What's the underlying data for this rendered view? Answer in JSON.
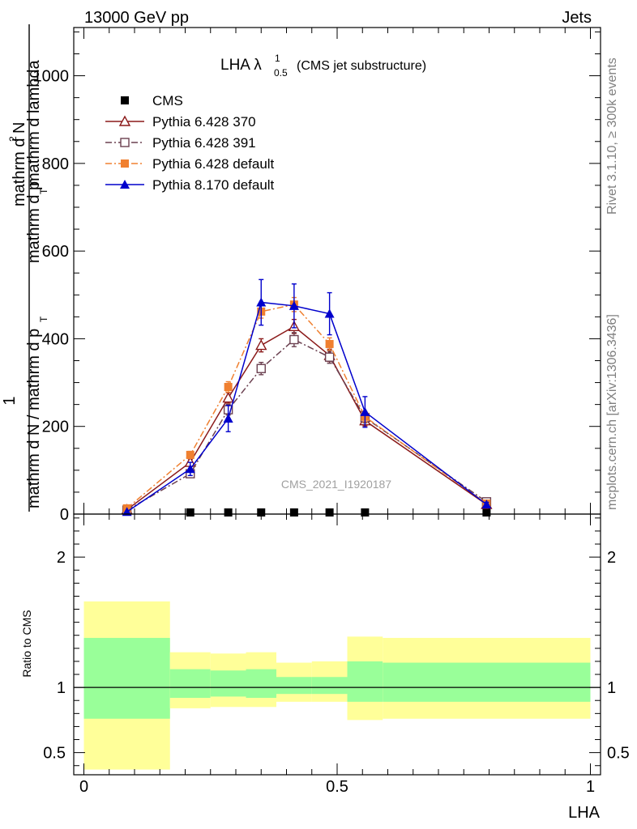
{
  "header": {
    "left": "13000 GeV pp",
    "right": "Jets"
  },
  "watermarks": {
    "rivet": "Rivet 3.1.10, ≥ 300k events",
    "mcplots": "mcplots.cern.ch [arXiv:1306.3436]",
    "analysis": "CMS_2021_I1920187"
  },
  "chart_data": [
    {
      "type": "line",
      "title_main": "LHA λ",
      "title_sup": "1",
      "title_sub": "0.5",
      "title_note": "(CMS jet substructure)",
      "ylabel_num": "1",
      "ylabel_num2": "mathrm d",
      "ylabel_num3": "2",
      "ylabel_num4": "N",
      "ylabel_num5": "mathrm d p",
      "ylabel_num6": "T",
      "ylabel_num7": "mathrm d lambda",
      "ylabel_den": "mathrm d N / mathrm d p",
      "ylabel_den_sub": "T",
      "xlim": [
        -0.02,
        1.02
      ],
      "ylim": [
        0,
        1110
      ],
      "yticks": [
        0,
        200,
        400,
        600,
        800,
        1000
      ],
      "yticklabels": [
        "0",
        "200",
        "400",
        "600",
        "800",
        "1000"
      ],
      "series": [
        {
          "name": "CMS",
          "color": "#000000",
          "marker": "square-filled",
          "x": [
            0.21,
            0.285,
            0.35,
            0.415,
            0.485,
            0.555,
            0.795
          ],
          "y": [
            0,
            0,
            0,
            0,
            0,
            0,
            0
          ]
        },
        {
          "name": "Pythia 6.428 370",
          "color": "#8b1a1a",
          "marker": "triangle-open",
          "dash": "",
          "x": [
            0.085,
            0.21,
            0.285,
            0.35,
            0.415,
            0.485,
            0.555,
            0.795
          ],
          "y": [
            10,
            118,
            265,
            385,
            428,
            362,
            213,
            22
          ],
          "err": [
            3,
            8,
            12,
            15,
            16,
            14,
            12,
            4
          ]
        },
        {
          "name": "Pythia 6.428 391",
          "color": "#6b4050",
          "marker": "square-open",
          "dash": "8,3,2,3",
          "x": [
            0.085,
            0.21,
            0.285,
            0.35,
            0.415,
            0.485,
            0.555,
            0.795
          ],
          "y": [
            9,
            92,
            238,
            332,
            398,
            358,
            220,
            28
          ],
          "err": [
            3,
            8,
            12,
            14,
            16,
            14,
            12,
            4
          ]
        },
        {
          "name": "Pythia 6.428 default",
          "color": "#f08030",
          "marker": "square-filled",
          "dash": "8,3,2,3",
          "x": [
            0.085,
            0.21,
            0.285,
            0.35,
            0.415,
            0.485,
            0.555,
            0.795
          ],
          "y": [
            13,
            135,
            290,
            462,
            478,
            388,
            222,
            24
          ],
          "err": [
            3,
            8,
            12,
            15,
            16,
            14,
            12,
            4
          ]
        },
        {
          "name": "Pythia 8.170 default",
          "color": "#0000cc",
          "marker": "triangle-filled",
          "dash": "",
          "x": [
            0.085,
            0.21,
            0.285,
            0.35,
            0.415,
            0.485,
            0.555,
            0.795
          ],
          "y": [
            5,
            103,
            218,
            483,
            475,
            457,
            233,
            22
          ],
          "err": [
            3,
            15,
            30,
            52,
            50,
            48,
            35,
            5
          ]
        }
      ]
    },
    {
      "type": "area",
      "ylabel": "Ratio to CMS",
      "xlabel": "LHA",
      "xlim": [
        -0.02,
        1.02
      ],
      "ylim": [
        0.33,
        2.33
      ],
      "yticks": [
        0.5,
        1,
        2
      ],
      "yticklabels": [
        "0.5",
        "1",
        "2"
      ],
      "xticks": [
        0,
        0.5,
        1
      ],
      "xticklabels": [
        "0",
        "0.5",
        "1"
      ],
      "bins": [
        {
          "x0": 0.0,
          "x1": 0.17,
          "yel_lo": 0.37,
          "yel_hi": 1.66,
          "grn_lo": 0.76,
          "grn_hi": 1.38
        },
        {
          "x0": 0.17,
          "x1": 0.25,
          "yel_lo": 0.84,
          "yel_hi": 1.27,
          "grn_lo": 0.92,
          "grn_hi": 1.14
        },
        {
          "x0": 0.25,
          "x1": 0.32,
          "yel_lo": 0.85,
          "yel_hi": 1.26,
          "grn_lo": 0.93,
          "grn_hi": 1.13
        },
        {
          "x0": 0.32,
          "x1": 0.38,
          "yel_lo": 0.85,
          "yel_hi": 1.27,
          "grn_lo": 0.92,
          "grn_hi": 1.14
        },
        {
          "x0": 0.38,
          "x1": 0.45,
          "yel_lo": 0.89,
          "yel_hi": 1.19,
          "grn_lo": 0.95,
          "grn_hi": 1.08
        },
        {
          "x0": 0.45,
          "x1": 0.52,
          "yel_lo": 0.89,
          "yel_hi": 1.2,
          "grn_lo": 0.95,
          "grn_hi": 1.08
        },
        {
          "x0": 0.52,
          "x1": 0.59,
          "yel_lo": 0.75,
          "yel_hi": 1.39,
          "grn_lo": 0.89,
          "grn_hi": 1.2
        },
        {
          "x0": 0.59,
          "x1": 1.0,
          "yel_lo": 0.76,
          "yel_hi": 1.38,
          "grn_lo": 0.89,
          "grn_hi": 1.19
        }
      ],
      "colors": {
        "yellow": "#ffff99",
        "green": "#99ff99"
      }
    }
  ]
}
